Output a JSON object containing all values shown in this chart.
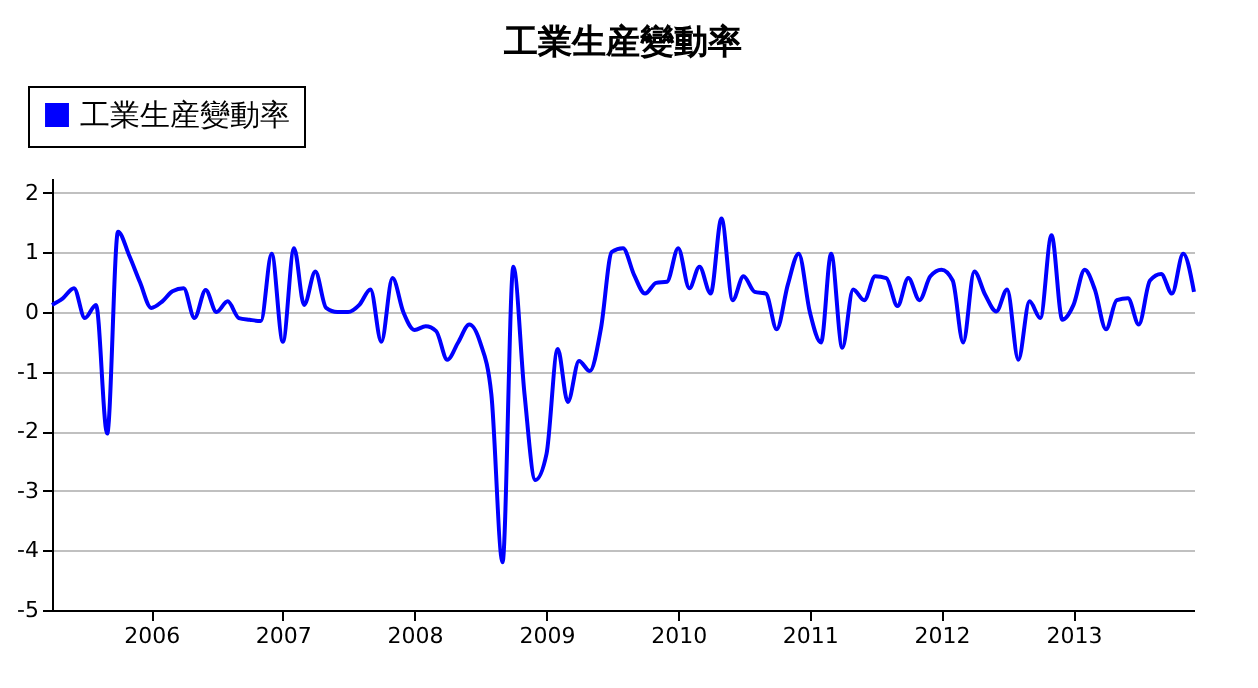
{
  "chart_data": {
    "type": "line",
    "title": "工業生産變動率",
    "x": [
      "2005-04",
      "2005-05",
      "2005-06",
      "2005-07",
      "2005-08",
      "2005-09",
      "2005-10",
      "2005-11",
      "2005-12",
      "2006-01",
      "2006-02",
      "2006-03",
      "2006-04",
      "2006-05",
      "2006-06",
      "2006-07",
      "2006-08",
      "2006-09",
      "2006-10",
      "2006-11",
      "2006-12",
      "2007-01",
      "2007-02",
      "2007-03",
      "2007-04",
      "2007-05",
      "2007-06",
      "2007-07",
      "2007-08",
      "2007-09",
      "2007-10",
      "2007-11",
      "2007-12",
      "2008-01",
      "2008-02",
      "2008-03",
      "2008-04",
      "2008-05",
      "2008-06",
      "2008-07",
      "2008-08",
      "2008-09",
      "2008-10",
      "2008-11",
      "2008-12",
      "2009-01",
      "2009-02",
      "2009-03",
      "2009-04",
      "2009-05",
      "2009-06",
      "2009-07",
      "2009-08",
      "2009-09",
      "2009-10",
      "2009-11",
      "2009-12",
      "2010-01",
      "2010-02",
      "2010-03",
      "2010-04",
      "2010-05",
      "2010-06",
      "2010-07",
      "2010-08",
      "2010-09",
      "2010-10",
      "2010-11",
      "2010-12",
      "2011-01",
      "2011-02",
      "2011-03",
      "2011-04",
      "2011-05",
      "2011-06",
      "2011-07",
      "2011-08",
      "2011-09",
      "2011-10",
      "2011-11",
      "2011-12",
      "2012-01",
      "2012-02",
      "2012-03",
      "2012-04",
      "2012-05",
      "2012-06",
      "2012-07",
      "2012-08",
      "2012-09",
      "2012-10",
      "2012-11",
      "2012-12",
      "2013-01",
      "2013-02",
      "2013-03",
      "2013-04",
      "2013-05",
      "2013-06",
      "2013-07",
      "2013-08",
      "2013-09",
      "2013-10",
      "2013-11",
      "2013-12"
    ],
    "series": [
      {
        "name": "工業生産變動率",
        "color": "#0000ff",
        "values": [
          0.12,
          0.23,
          0.4,
          -0.1,
          0.12,
          -2.04,
          1.35,
          0.95,
          0.5,
          0.07,
          0.18,
          0.35,
          0.4,
          -0.1,
          0.37,
          0.0,
          0.18,
          -0.1,
          -0.13,
          -0.15,
          0.98,
          -0.5,
          1.07,
          0.12,
          0.68,
          0.07,
          0.0,
          0.0,
          0.12,
          0.38,
          -0.5,
          0.57,
          0.0,
          -0.3,
          -0.24,
          -0.32,
          -0.8,
          -0.51,
          -0.21,
          -0.51,
          -1.38,
          -4.2,
          0.76,
          -1.38,
          -2.82,
          -2.38,
          -0.62,
          -1.51,
          -0.82,
          -0.99,
          -0.27,
          1.01,
          1.07,
          0.62,
          0.31,
          0.49,
          0.51,
          1.07,
          0.4,
          0.76,
          0.31,
          1.57,
          0.2,
          0.6,
          0.34,
          0.31,
          -0.29,
          0.46,
          0.98,
          0.0,
          -0.51,
          0.98,
          -0.6,
          0.38,
          0.2,
          0.6,
          0.57,
          0.1,
          0.57,
          0.2,
          0.6,
          0.71,
          0.53,
          -0.51,
          0.68,
          0.29,
          0.01,
          0.38,
          -0.8,
          0.18,
          -0.1,
          1.29,
          -0.13,
          0.12,
          0.71,
          0.38,
          -0.29,
          0.2,
          0.23,
          -0.21,
          0.53,
          0.64,
          0.31,
          0.98,
          0.34
        ]
      }
    ],
    "xlim": [
      "2005-04",
      "2013-12"
    ],
    "xticks": [
      "2006",
      "2007",
      "2008",
      "2009",
      "2010",
      "2011",
      "2012",
      "2013"
    ],
    "ylim": [
      -5,
      2.25
    ],
    "yticks": [
      -5,
      -4,
      -3,
      -2,
      -1,
      0,
      1,
      2
    ],
    "grid": "y",
    "legend": "top left",
    "marker": "none",
    "line_style": "solid"
  }
}
